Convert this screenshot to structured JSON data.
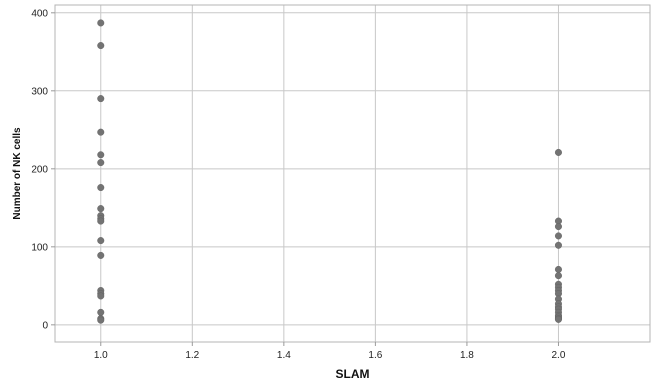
{
  "chart_data": {
    "type": "scatter",
    "title": "",
    "xlabel": "SLAM",
    "ylabel": "Number of NK cells",
    "xlim": [
      0.9,
      2.2
    ],
    "ylim": [
      -22,
      410
    ],
    "xticks": [
      1.0,
      1.2,
      1.4,
      1.6,
      1.8,
      2.0
    ],
    "xtick_labels": [
      "1.0",
      "1.2",
      "1.4",
      "1.6",
      "1.8",
      "2.0"
    ],
    "yticks": [
      0,
      100,
      200,
      300,
      400
    ],
    "ytick_labels": [
      "0",
      "100",
      "200",
      "300",
      "400"
    ],
    "grid": true,
    "marker_color": "#737373",
    "grid_color": "#c8c8c8",
    "series": [
      {
        "x": [
          1.0,
          1.0,
          1.0,
          1.0,
          1.0,
          1.0,
          1.0,
          1.0,
          1.0,
          1.0,
          1.0,
          1.0,
          1.0,
          1.0,
          1.0,
          1.0,
          1.0,
          1.0,
          1.0,
          2.0,
          2.0,
          2.0,
          2.0,
          2.0,
          2.0,
          2.0,
          2.0,
          2.0,
          2.0,
          2.0,
          2.0,
          2.0,
          2.0,
          2.0,
          2.0,
          2.0,
          2.0,
          2.0,
          2.0
        ],
        "y": [
          387,
          358,
          290,
          247,
          218,
          208,
          176,
          149,
          140,
          136,
          133,
          108,
          89,
          44,
          40,
          37,
          16,
          8,
          6,
          221,
          133,
          126,
          114,
          102,
          71,
          63,
          52,
          48,
          44,
          40,
          33,
          27,
          23,
          20,
          16,
          12,
          10,
          8,
          7
        ]
      }
    ]
  }
}
